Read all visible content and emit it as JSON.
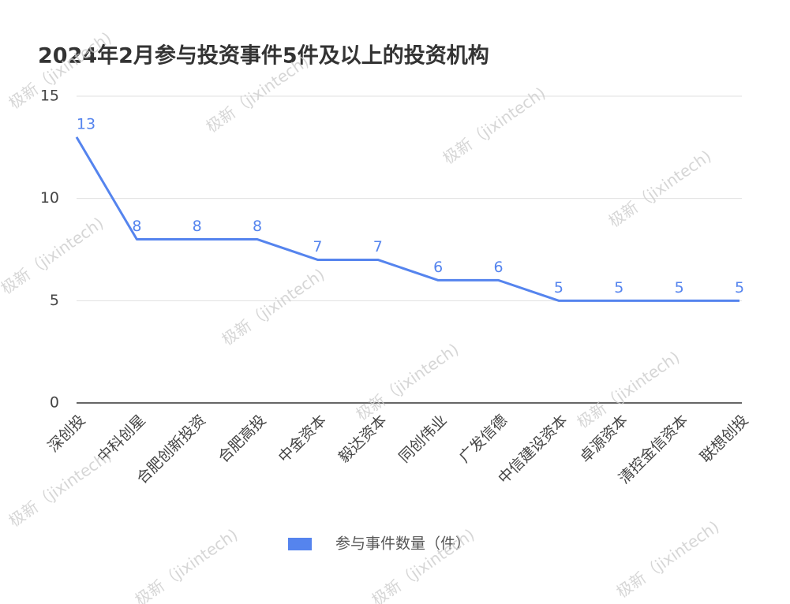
{
  "chart_data": {
    "type": "line",
    "title": "2024年2月参与投资事件5件及以上的投资机构",
    "watermark": "极新（jixintech)",
    "categories": [
      "深创投",
      "中科创星",
      "合肥创新投资",
      "合肥高投",
      "中金资本",
      "毅达资本",
      "同创伟业",
      "广发信德",
      "中信建设资本",
      "卓源资本",
      "清控金信资本",
      "联想创投"
    ],
    "series": [
      {
        "name": "参与事件数量（件）",
        "color": "#5584ee",
        "values": [
          13,
          8,
          8,
          8,
          7,
          7,
          6,
          6,
          5,
          5,
          5,
          5
        ]
      }
    ],
    "ylim": [
      0,
      15
    ],
    "yticks": [
      0,
      5,
      10,
      15
    ],
    "grid": true,
    "legend": "bottom"
  }
}
